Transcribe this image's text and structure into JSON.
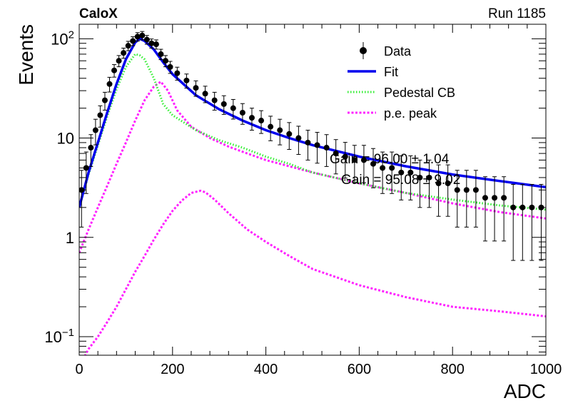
{
  "header": {
    "experiment": "CaloX",
    "run": "Run 1185"
  },
  "chart_data": {
    "type": "scatter",
    "xlabel": "ADC",
    "ylabel": "Events",
    "xlim": [
      0,
      1000
    ],
    "ylim": [
      0.065,
      140
    ],
    "yscale": "log",
    "x_ticks": [
      0,
      200,
      400,
      600,
      800,
      1000
    ],
    "y_ticks": [
      {
        "value": 0.1,
        "base": "10",
        "exp": "−1"
      },
      {
        "value": 1,
        "text": "1"
      },
      {
        "value": 10,
        "text": "10"
      },
      {
        "value": 100,
        "base": "10",
        "exp": "2"
      }
    ],
    "legend_position": "top-right",
    "legend": [
      {
        "key": "data",
        "label": "Data"
      },
      {
        "key": "fit",
        "label": "Fit"
      },
      {
        "key": "ped",
        "label": "Pedestal CB"
      },
      {
        "key": "pe",
        "label": "p.e. peak"
      }
    ],
    "stats_text": [
      "Gain = 96.00 ± 1.04",
      "Gain = 95.08 ± 9.02"
    ],
    "colors": {
      "data": "#000000",
      "fit": "#0000ee",
      "ped": "#33ee33",
      "pe": "#ff22ff"
    },
    "series": [
      {
        "name": "Data",
        "style": "points",
        "x": [
          5,
          15,
          25,
          35,
          45,
          55,
          65,
          75,
          85,
          95,
          105,
          115,
          125,
          135,
          145,
          155,
          165,
          175,
          185,
          195,
          210,
          230,
          250,
          270,
          290,
          310,
          330,
          350,
          370,
          390,
          410,
          430,
          450,
          470,
          490,
          510,
          530,
          550,
          570,
          590,
          610,
          630,
          650,
          670,
          690,
          710,
          730,
          750,
          770,
          790,
          810,
          830,
          850,
          870,
          890,
          910,
          930,
          950,
          970,
          990
        ],
        "y": [
          3,
          5,
          8,
          12,
          17,
          24,
          35,
          48,
          60,
          72,
          85,
          95,
          105,
          108,
          98,
          90,
          88,
          70,
          60,
          52,
          45,
          38,
          32,
          28,
          24,
          22,
          20,
          18,
          16,
          15,
          13,
          12,
          11,
          10,
          9,
          8.5,
          8,
          7,
          6.5,
          6,
          6,
          5.5,
          5,
          5,
          4.5,
          4.5,
          4,
          4,
          3.5,
          3.5,
          3,
          3,
          3,
          2.5,
          2.5,
          2.5,
          2,
          2,
          2,
          2
        ]
      },
      {
        "name": "Fit",
        "style": "solid",
        "x": [
          0,
          20,
          40,
          60,
          80,
          100,
          120,
          130,
          140,
          160,
          180,
          200,
          250,
          300,
          350,
          400,
          450,
          500,
          600,
          700,
          800,
          900,
          1000
        ],
        "y": [
          2,
          4.5,
          9,
          18,
          35,
          62,
          92,
          100,
          95,
          78,
          58,
          44,
          27,
          19.5,
          15,
          12,
          10,
          8.5,
          6.5,
          5.2,
          4.3,
          3.7,
          3.2
        ]
      },
      {
        "name": "Pedestal CB",
        "style": "dotted",
        "x": [
          0,
          20,
          40,
          60,
          80,
          100,
          120,
          130,
          140,
          160,
          180,
          200,
          250,
          300,
          350,
          400,
          450,
          500,
          600,
          700,
          800,
          900,
          1000
        ],
        "y": [
          2,
          4.3,
          8.5,
          16.5,
          31,
          52,
          70,
          68,
          62,
          40,
          22,
          17,
          12,
          9.5,
          8,
          6.5,
          5.5,
          4.5,
          3.5,
          2.8,
          2.4,
          2.1,
          1.9
        ]
      },
      {
        "name": "p.e. peak (1)",
        "style": "dashed",
        "x": [
          0,
          20,
          40,
          60,
          80,
          100,
          120,
          140,
          160,
          175,
          190,
          210,
          240,
          280,
          320,
          360,
          400,
          500,
          600,
          700,
          800,
          900,
          1000
        ],
        "y": [
          0.7,
          1.2,
          2,
          3.3,
          5.5,
          9,
          15,
          24,
          33,
          37,
          30,
          19,
          13,
          10,
          8.2,
          7,
          6,
          4.5,
          3.5,
          2.8,
          2.2,
          1.8,
          1.55
        ]
      },
      {
        "name": "p.e. peak (2)",
        "style": "dashed",
        "x": [
          0,
          20,
          40,
          60,
          80,
          100,
          120,
          140,
          160,
          180,
          200,
          220,
          240,
          260,
          270,
          290,
          320,
          360,
          400,
          450,
          500,
          600,
          700,
          800,
          900,
          1000
        ],
        "y": [
          0.05,
          0.075,
          0.1,
          0.14,
          0.2,
          0.3,
          0.45,
          0.65,
          0.95,
          1.35,
          1.85,
          2.35,
          2.8,
          2.95,
          2.85,
          2.4,
          1.75,
          1.2,
          0.9,
          0.65,
          0.48,
          0.33,
          0.25,
          0.2,
          0.18,
          0.16
        ]
      }
    ]
  }
}
